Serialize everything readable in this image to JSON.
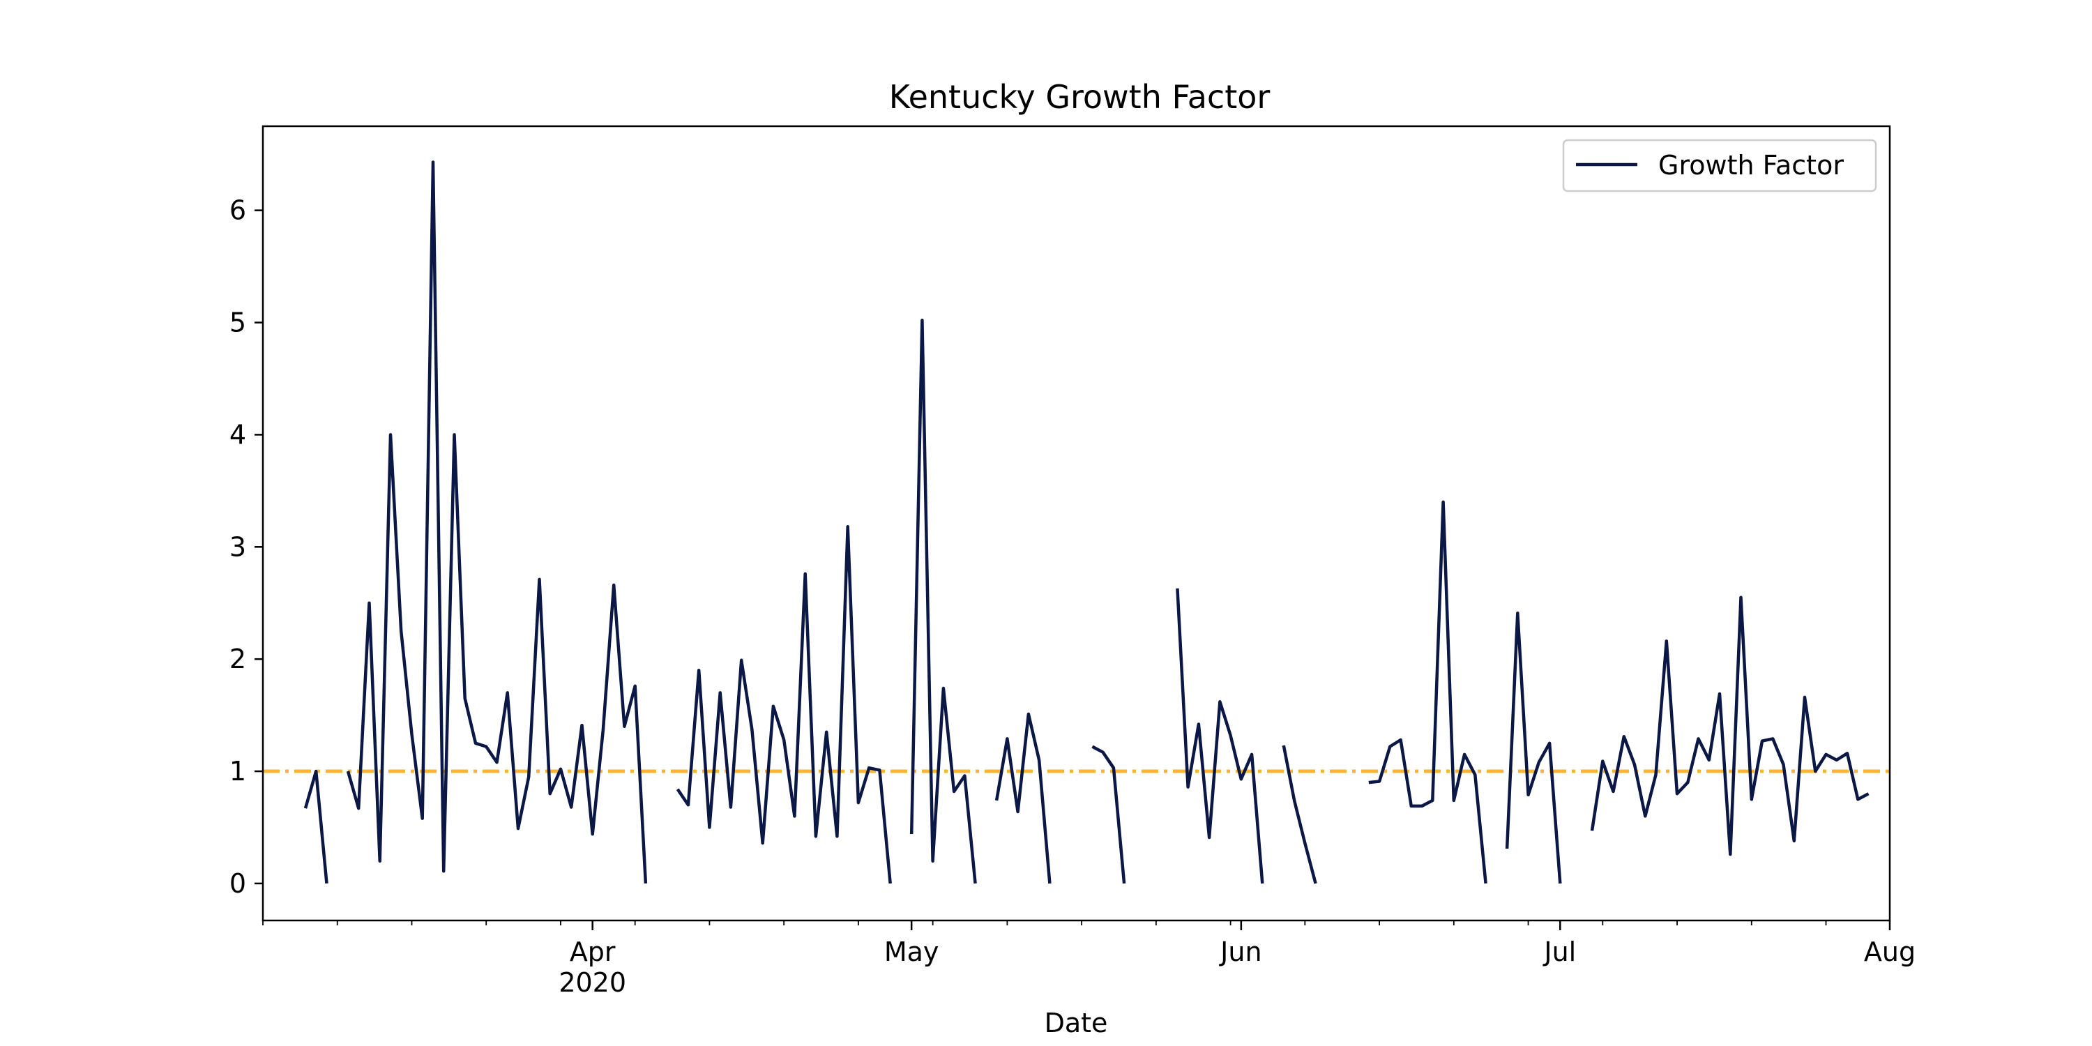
{
  "chart_data": {
    "type": "line",
    "title": "Kentucky Growth Factor",
    "xlabel": "Date",
    "ylabel": "",
    "ylim": [
      -0.33,
      6.75
    ],
    "xlim": [
      "2020-03-01",
      "2020-08-01"
    ],
    "grid": false,
    "legend": {
      "placement": "top-right",
      "entries": [
        "Growth Factor"
      ]
    },
    "x_ticks": [
      {
        "date": "2020-04-01",
        "label": "Apr",
        "sublabel": "2020"
      },
      {
        "date": "2020-05-01",
        "label": "May",
        "sublabel": ""
      },
      {
        "date": "2020-06-01",
        "label": "Jun",
        "sublabel": ""
      },
      {
        "date": "2020-07-01",
        "label": "Jul",
        "sublabel": ""
      },
      {
        "date": "2020-08-01",
        "label": "Aug",
        "sublabel": ""
      }
    ],
    "y_ticks": [
      0,
      1,
      2,
      3,
      4,
      5,
      6
    ],
    "reference_line": {
      "y": 1,
      "style": "dash-dot",
      "color": "#fbb536"
    },
    "series": [
      {
        "name": "Growth Factor",
        "color": "#0b1846",
        "points": [
          [
            "2020-03-05",
            0.67
          ],
          [
            "2020-03-06",
            1.0
          ],
          [
            "2020-03-07",
            0.0
          ],
          [
            "2020-03-08",
            null
          ],
          [
            "2020-03-09",
            1.0
          ],
          [
            "2020-03-10",
            0.67
          ],
          [
            "2020-03-11",
            2.5
          ],
          [
            "2020-03-12",
            0.2
          ],
          [
            "2020-03-13",
            4.0
          ],
          [
            "2020-03-14",
            2.25
          ],
          [
            "2020-03-15",
            1.33
          ],
          [
            "2020-03-16",
            0.58
          ],
          [
            "2020-03-17",
            6.43
          ],
          [
            "2020-03-18",
            0.11
          ],
          [
            "2020-03-19",
            4.0
          ],
          [
            "2020-03-20",
            1.65
          ],
          [
            "2020-03-21",
            1.25
          ],
          [
            "2020-03-22",
            1.22
          ],
          [
            "2020-03-23",
            1.08
          ],
          [
            "2020-03-24",
            1.7
          ],
          [
            "2020-03-25",
            0.49
          ],
          [
            "2020-03-26",
            0.95
          ],
          [
            "2020-03-27",
            2.71
          ],
          [
            "2020-03-28",
            0.8
          ],
          [
            "2020-03-29",
            1.02
          ],
          [
            "2020-03-30",
            0.68
          ],
          [
            "2020-03-31",
            1.41
          ],
          [
            "2020-04-01",
            0.44
          ],
          [
            "2020-04-02",
            1.37
          ],
          [
            "2020-04-03",
            2.66
          ],
          [
            "2020-04-04",
            1.4
          ],
          [
            "2020-04-05",
            1.76
          ],
          [
            "2020-04-06",
            0.0
          ],
          [
            "2020-04-07",
            null
          ],
          [
            "2020-04-08",
            null
          ],
          [
            "2020-04-09",
            0.84
          ],
          [
            "2020-04-10",
            0.7
          ],
          [
            "2020-04-11",
            1.9
          ],
          [
            "2020-04-12",
            0.5
          ],
          [
            "2020-04-13",
            1.7
          ],
          [
            "2020-04-14",
            0.68
          ],
          [
            "2020-04-15",
            1.99
          ],
          [
            "2020-04-16",
            1.37
          ],
          [
            "2020-04-17",
            0.36
          ],
          [
            "2020-04-18",
            1.58
          ],
          [
            "2020-04-19",
            1.28
          ],
          [
            "2020-04-20",
            0.6
          ],
          [
            "2020-04-21",
            2.76
          ],
          [
            "2020-04-22",
            0.42
          ],
          [
            "2020-04-23",
            1.35
          ],
          [
            "2020-04-24",
            0.42
          ],
          [
            "2020-04-25",
            3.18
          ],
          [
            "2020-04-26",
            0.72
          ],
          [
            "2020-04-27",
            1.03
          ],
          [
            "2020-04-28",
            1.01
          ],
          [
            "2020-04-29",
            0.0
          ],
          [
            "2020-04-30",
            null
          ],
          [
            "2020-05-01",
            0.44
          ],
          [
            "2020-05-02",
            5.02
          ],
          [
            "2020-05-03",
            0.2
          ],
          [
            "2020-05-04",
            1.74
          ],
          [
            "2020-05-05",
            0.82
          ],
          [
            "2020-05-06",
            0.96
          ],
          [
            "2020-05-07",
            0.0
          ],
          [
            "2020-05-08",
            null
          ],
          [
            "2020-05-09",
            0.74
          ],
          [
            "2020-05-10",
            1.29
          ],
          [
            "2020-05-11",
            0.64
          ],
          [
            "2020-05-12",
            1.51
          ],
          [
            "2020-05-13",
            1.1
          ],
          [
            "2020-05-14",
            0.0
          ],
          [
            "2020-05-15",
            null
          ],
          [
            "2020-05-16",
            null
          ],
          [
            "2020-05-17",
            null
          ],
          [
            "2020-05-18",
            1.22
          ],
          [
            "2020-05-19",
            1.17
          ],
          [
            "2020-05-20",
            1.03
          ],
          [
            "2020-05-21",
            0.0
          ],
          [
            "2020-05-22",
            null
          ],
          [
            "2020-05-23",
            null
          ],
          [
            "2020-05-24",
            null
          ],
          [
            "2020-05-25",
            null
          ],
          [
            "2020-05-26",
            2.63
          ],
          [
            "2020-05-27",
            0.86
          ],
          [
            "2020-05-28",
            1.42
          ],
          [
            "2020-05-29",
            0.41
          ],
          [
            "2020-05-30",
            1.62
          ],
          [
            "2020-05-31",
            1.32
          ],
          [
            "2020-06-01",
            0.93
          ],
          [
            "2020-06-02",
            1.15
          ],
          [
            "2020-06-03",
            0.0
          ],
          [
            "2020-06-04",
            null
          ],
          [
            "2020-06-05",
            1.23
          ],
          [
            "2020-06-06",
            0.74
          ],
          [
            "2020-06-07",
            0.36
          ],
          [
            "2020-06-08",
            0.0
          ],
          [
            "2020-06-09",
            null
          ],
          [
            "2020-06-10",
            null
          ],
          [
            "2020-06-11",
            null
          ],
          [
            "2020-06-12",
            null
          ],
          [
            "2020-06-13",
            0.9
          ],
          [
            "2020-06-14",
            0.91
          ],
          [
            "2020-06-15",
            1.22
          ],
          [
            "2020-06-16",
            1.28
          ],
          [
            "2020-06-17",
            0.69
          ],
          [
            "2020-06-18",
            0.69
          ],
          [
            "2020-06-19",
            0.74
          ],
          [
            "2020-06-20",
            3.4
          ],
          [
            "2020-06-21",
            0.74
          ],
          [
            "2020-06-22",
            1.15
          ],
          [
            "2020-06-23",
            0.97
          ],
          [
            "2020-06-24",
            0.0
          ],
          [
            "2020-06-25",
            null
          ],
          [
            "2020-06-26",
            0.31
          ],
          [
            "2020-06-27",
            2.41
          ],
          [
            "2020-06-28",
            0.79
          ],
          [
            "2020-06-29",
            1.08
          ],
          [
            "2020-06-30",
            1.25
          ],
          [
            "2020-07-01",
            0.0
          ],
          [
            "2020-07-02",
            null
          ],
          [
            "2020-07-03",
            null
          ],
          [
            "2020-07-04",
            0.47
          ],
          [
            "2020-07-05",
            1.09
          ],
          [
            "2020-07-06",
            0.82
          ],
          [
            "2020-07-07",
            1.31
          ],
          [
            "2020-07-08",
            1.06
          ],
          [
            "2020-07-09",
            0.6
          ],
          [
            "2020-07-10",
            0.97
          ],
          [
            "2020-07-11",
            2.16
          ],
          [
            "2020-07-12",
            0.8
          ],
          [
            "2020-07-13",
            0.9
          ],
          [
            "2020-07-14",
            1.29
          ],
          [
            "2020-07-15",
            1.1
          ],
          [
            "2020-07-16",
            1.69
          ],
          [
            "2020-07-17",
            0.26
          ],
          [
            "2020-07-18",
            2.55
          ],
          [
            "2020-07-19",
            0.75
          ],
          [
            "2020-07-20",
            1.27
          ],
          [
            "2020-07-21",
            1.29
          ],
          [
            "2020-07-22",
            1.06
          ],
          [
            "2020-07-23",
            0.38
          ],
          [
            "2020-07-24",
            1.66
          ],
          [
            "2020-07-25",
            1.0
          ],
          [
            "2020-07-26",
            1.15
          ],
          [
            "2020-07-27",
            1.1
          ],
          [
            "2020-07-28",
            1.16
          ],
          [
            "2020-07-29",
            0.75
          ],
          [
            "2020-07-30",
            0.8
          ]
        ]
      }
    ]
  }
}
